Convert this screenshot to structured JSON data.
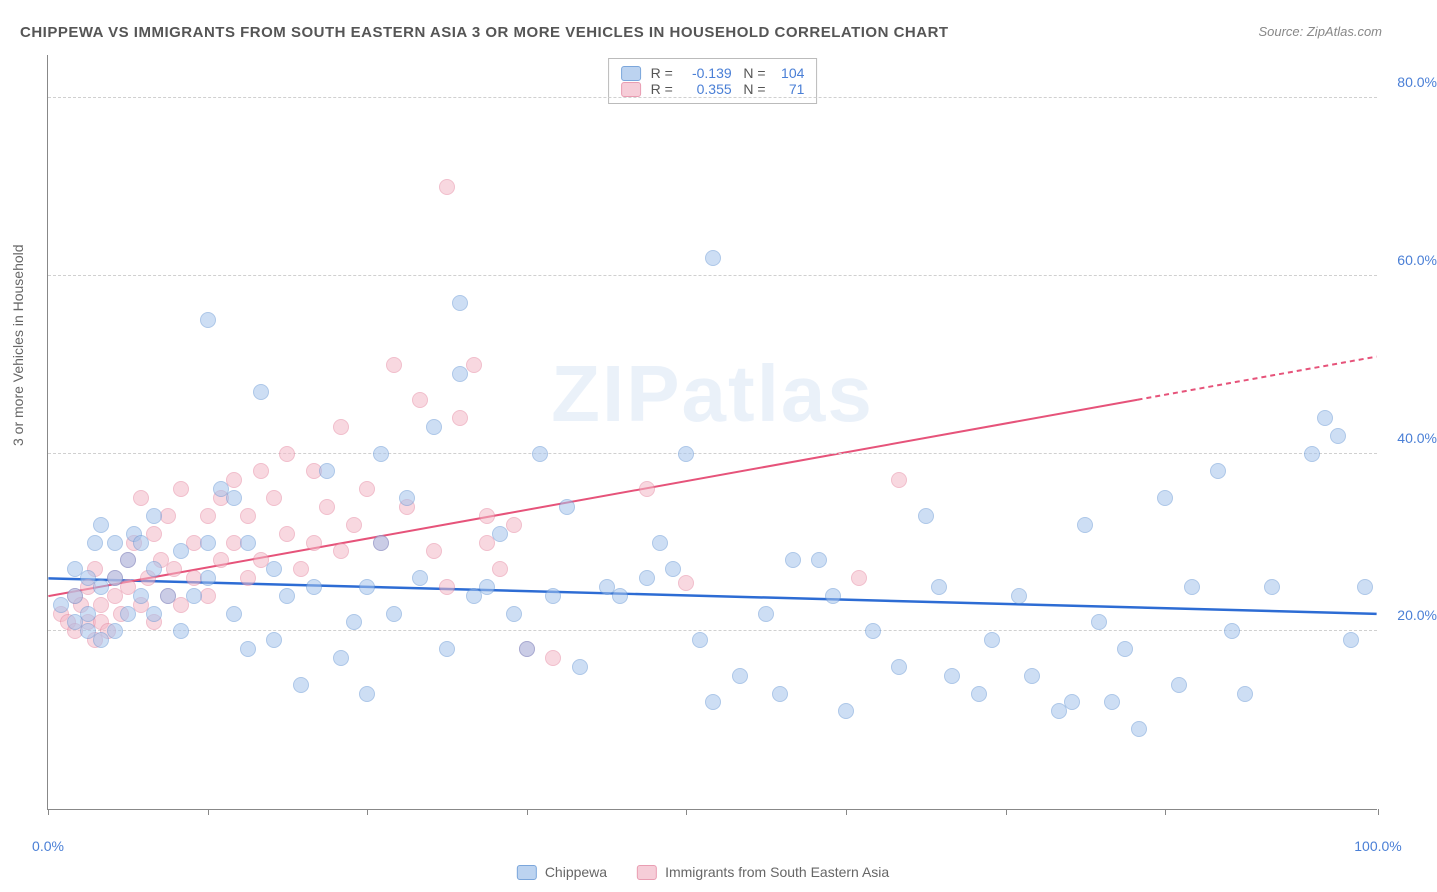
{
  "title": "CHIPPEWA VS IMMIGRANTS FROM SOUTH EASTERN ASIA 3 OR MORE VEHICLES IN HOUSEHOLD CORRELATION CHART",
  "title_color": "#555555",
  "source_label": "Source: ZipAtlas.com",
  "source_color": "#888888",
  "watermark": "ZIPatlas",
  "watermark_color": "#5b8fd6",
  "yaxis_label": "3 or more Vehicles in Household",
  "yaxis_label_color": "#666666",
  "background_color": "#ffffff",
  "grid_color": "#d0d0d0",
  "axis_color": "#888888",
  "chart": {
    "type": "scatter",
    "xlim": [
      0,
      100
    ],
    "ylim": [
      0,
      85
    ],
    "xtick_positions": [
      0,
      12,
      24,
      36,
      48,
      60,
      72,
      84,
      100
    ],
    "xtick_labels": {
      "0": "0.0%",
      "100": "100.0%"
    },
    "xtick_label_color": "#4a7fd6",
    "ytick_positions": [
      20,
      40,
      60,
      80
    ],
    "ytick_labels": [
      "20.0%",
      "40.0%",
      "60.0%",
      "80.0%"
    ],
    "ytick_label_color": "#4a7fd6",
    "marker_radius": 8,
    "marker_opacity": 0.55,
    "marker_border_width": 1
  },
  "series": [
    {
      "name": "Chippewa",
      "fill_color": "#a5c4ec",
      "border_color": "#6b9ad6",
      "swatch_fill": "#bcd3f0",
      "swatch_border": "#7ba6db",
      "R": "-0.139",
      "N": "104",
      "trend": {
        "x1": 0,
        "y1": 26,
        "x2": 100,
        "y2": 22,
        "color": "#2d6cd4",
        "width": 2.5,
        "dash_from_x": null
      },
      "points": [
        [
          1,
          23
        ],
        [
          2,
          24
        ],
        [
          2,
          21
        ],
        [
          2,
          27
        ],
        [
          3,
          22
        ],
        [
          3,
          26
        ],
        [
          3,
          20
        ],
        [
          3.5,
          30
        ],
        [
          4,
          19
        ],
        [
          4,
          25
        ],
        [
          4,
          32
        ],
        [
          5,
          30
        ],
        [
          5,
          20
        ],
        [
          5,
          26
        ],
        [
          6,
          22
        ],
        [
          6,
          28
        ],
        [
          6.5,
          31
        ],
        [
          7,
          24
        ],
        [
          7,
          30
        ],
        [
          8,
          27
        ],
        [
          8,
          22
        ],
        [
          8,
          33
        ],
        [
          9,
          24
        ],
        [
          10,
          29
        ],
        [
          10,
          20
        ],
        [
          11,
          24
        ],
        [
          12,
          26
        ],
        [
          12,
          30
        ],
        [
          12,
          55
        ],
        [
          13,
          36
        ],
        [
          14,
          22
        ],
        [
          14,
          35
        ],
        [
          15,
          18
        ],
        [
          15,
          30
        ],
        [
          16,
          47
        ],
        [
          17,
          19
        ],
        [
          17,
          27
        ],
        [
          18,
          24
        ],
        [
          19,
          14
        ],
        [
          20,
          25
        ],
        [
          21,
          38
        ],
        [
          22,
          17
        ],
        [
          23,
          21
        ],
        [
          24,
          25
        ],
        [
          24,
          13
        ],
        [
          25,
          40
        ],
        [
          25,
          30
        ],
        [
          26,
          22
        ],
        [
          27,
          35
        ],
        [
          28,
          26
        ],
        [
          29,
          43
        ],
        [
          30,
          18
        ],
        [
          31,
          57
        ],
        [
          31,
          49
        ],
        [
          32,
          24
        ],
        [
          33,
          25
        ],
        [
          34,
          31
        ],
        [
          35,
          22
        ],
        [
          36,
          18
        ],
        [
          37,
          40
        ],
        [
          38,
          24
        ],
        [
          39,
          34
        ],
        [
          40,
          16
        ],
        [
          42,
          25
        ],
        [
          43,
          24
        ],
        [
          45,
          26
        ],
        [
          46,
          30
        ],
        [
          47,
          27
        ],
        [
          48,
          40
        ],
        [
          49,
          19
        ],
        [
          50,
          12
        ],
        [
          50,
          62
        ],
        [
          52,
          15
        ],
        [
          54,
          22
        ],
        [
          55,
          13
        ],
        [
          56,
          28
        ],
        [
          58,
          28
        ],
        [
          59,
          24
        ],
        [
          60,
          11
        ],
        [
          62,
          20
        ],
        [
          64,
          16
        ],
        [
          66,
          33
        ],
        [
          67,
          25
        ],
        [
          68,
          15
        ],
        [
          70,
          13
        ],
        [
          71,
          19
        ],
        [
          73,
          24
        ],
        [
          74,
          15
        ],
        [
          76,
          11
        ],
        [
          77,
          12
        ],
        [
          78,
          32
        ],
        [
          79,
          21
        ],
        [
          80,
          12
        ],
        [
          81,
          18
        ],
        [
          82,
          9
        ],
        [
          84,
          35
        ],
        [
          85,
          14
        ],
        [
          86,
          25
        ],
        [
          88,
          38
        ],
        [
          89,
          20
        ],
        [
          90,
          13
        ],
        [
          92,
          25
        ],
        [
          95,
          40
        ],
        [
          96,
          44
        ],
        [
          97,
          42
        ],
        [
          98,
          19
        ],
        [
          99,
          25
        ]
      ]
    },
    {
      "name": "Immigrants from South Eastern Asia",
      "fill_color": "#f3b9c7",
      "border_color": "#e68aa3",
      "swatch_fill": "#f6cdd8",
      "swatch_border": "#e99db2",
      "R": "0.355",
      "N": "71",
      "trend": {
        "x1": 0,
        "y1": 24,
        "x2": 100,
        "y2": 51,
        "color": "#e6537a",
        "width": 2,
        "dash_from_x": 82
      },
      "points": [
        [
          1,
          22
        ],
        [
          1.5,
          21
        ],
        [
          2,
          24
        ],
        [
          2,
          20
        ],
        [
          2.5,
          23
        ],
        [
          3,
          21
        ],
        [
          3,
          25
        ],
        [
          3.5,
          19
        ],
        [
          3.5,
          27
        ],
        [
          4,
          23
        ],
        [
          4,
          21
        ],
        [
          4.5,
          20
        ],
        [
          5,
          24
        ],
        [
          5,
          26
        ],
        [
          5.5,
          22
        ],
        [
          6,
          28
        ],
        [
          6,
          25
        ],
        [
          6.5,
          30
        ],
        [
          7,
          23
        ],
        [
          7,
          35
        ],
        [
          7.5,
          26
        ],
        [
          8,
          21
        ],
        [
          8,
          31
        ],
        [
          8.5,
          28
        ],
        [
          9,
          24
        ],
        [
          9,
          33
        ],
        [
          9.5,
          27
        ],
        [
          10,
          23
        ],
        [
          10,
          36
        ],
        [
          11,
          30
        ],
        [
          11,
          26
        ],
        [
          12,
          33
        ],
        [
          12,
          24
        ],
        [
          13,
          28
        ],
        [
          13,
          35
        ],
        [
          14,
          30
        ],
        [
          14,
          37
        ],
        [
          15,
          26
        ],
        [
          15,
          33
        ],
        [
          16,
          38
        ],
        [
          16,
          28
        ],
        [
          17,
          35
        ],
        [
          18,
          40
        ],
        [
          18,
          31
        ],
        [
          19,
          27
        ],
        [
          20,
          38
        ],
        [
          20,
          30
        ],
        [
          21,
          34
        ],
        [
          22,
          43
        ],
        [
          22,
          29
        ],
        [
          23,
          32
        ],
        [
          24,
          36
        ],
        [
          25,
          30
        ],
        [
          26,
          50
        ],
        [
          27,
          34
        ],
        [
          28,
          46
        ],
        [
          29,
          29
        ],
        [
          30,
          25
        ],
        [
          30,
          70
        ],
        [
          31,
          44
        ],
        [
          32,
          50
        ],
        [
          33,
          33
        ],
        [
          33,
          30
        ],
        [
          34,
          27
        ],
        [
          35,
          32
        ],
        [
          36,
          18
        ],
        [
          38,
          17
        ],
        [
          45,
          36
        ],
        [
          48,
          25.5
        ],
        [
          61,
          26
        ],
        [
          64,
          37
        ]
      ]
    }
  ],
  "legend_top": {
    "R_label": "R =",
    "N_label": "N =",
    "value_color": "#4a7fd6",
    "label_color": "#555555"
  },
  "legend_bottom_color": "#666666"
}
